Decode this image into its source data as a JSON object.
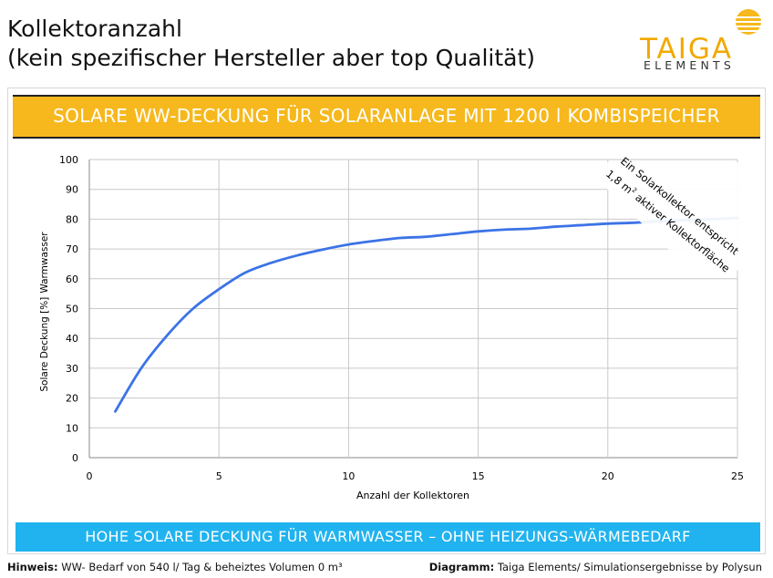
{
  "header": {
    "title_line1": "Kollektoranzahl",
    "title_line2": "(kein spezifischer Hersteller aber top Qualität)"
  },
  "logo": {
    "word": "TAIGA",
    "sub": "ELEMENTS",
    "color": "#f2a900"
  },
  "banner_top": {
    "text": "SOLARE WW-DECKUNG FÜR SOLARANLAGE MIT 1200 l KOMBISPEICHER",
    "color": "#f6b81d"
  },
  "banner_bottom": {
    "text": "HOHE SOLARE DECKUNG FÜR WARMWASSER – OHNE HEIZUNGS-WÄRMEBEDARF",
    "color": "#20b3ef"
  },
  "footer": {
    "left_label": "Hinweis:",
    "left_text": " WW- Bedarf von 540 l/ Tag & beheiztes Volumen 0 m³",
    "right_label": "Diagramm:",
    "right_text": " Taiga Elements/ Simulationsergebnisse by Polysun"
  },
  "chart_data": {
    "type": "line",
    "xlabel": "Anzahl der Kollektoren",
    "ylabel_line1": "Solare Deckung [%]",
    "ylabel_line2": "Warmwasser",
    "xlim": [
      0,
      25
    ],
    "ylim": [
      0,
      100
    ],
    "xticks": [
      0,
      5,
      10,
      15,
      20,
      25
    ],
    "yticks": [
      0,
      10,
      20,
      30,
      40,
      50,
      60,
      70,
      80,
      90,
      100
    ],
    "grid": true,
    "line_color": "#3c73e6",
    "series": [
      {
        "x": [
          1,
          2,
          3,
          4,
          5,
          6,
          7,
          8,
          9,
          10,
          11,
          12,
          13,
          14,
          15,
          16,
          17,
          18,
          19,
          20,
          21,
          22,
          23,
          24,
          25
        ],
        "values": [
          15.5,
          30,
          41,
          50,
          56.5,
          62,
          65.3,
          67.8,
          69.8,
          71.5,
          72.7,
          73.7,
          74.1,
          75,
          75.9,
          76.5,
          76.8,
          77.5,
          78,
          78.5,
          78.8,
          79.3,
          79.7,
          80,
          80.5
        ]
      }
    ],
    "annotation_line1": "Ein Solarkollektor  entspricht",
    "annotation_line2_prefix": "1,8 m",
    "annotation_line2_sup": "2",
    "annotation_line2_suffix": " aktiver Kollektorfläche"
  }
}
